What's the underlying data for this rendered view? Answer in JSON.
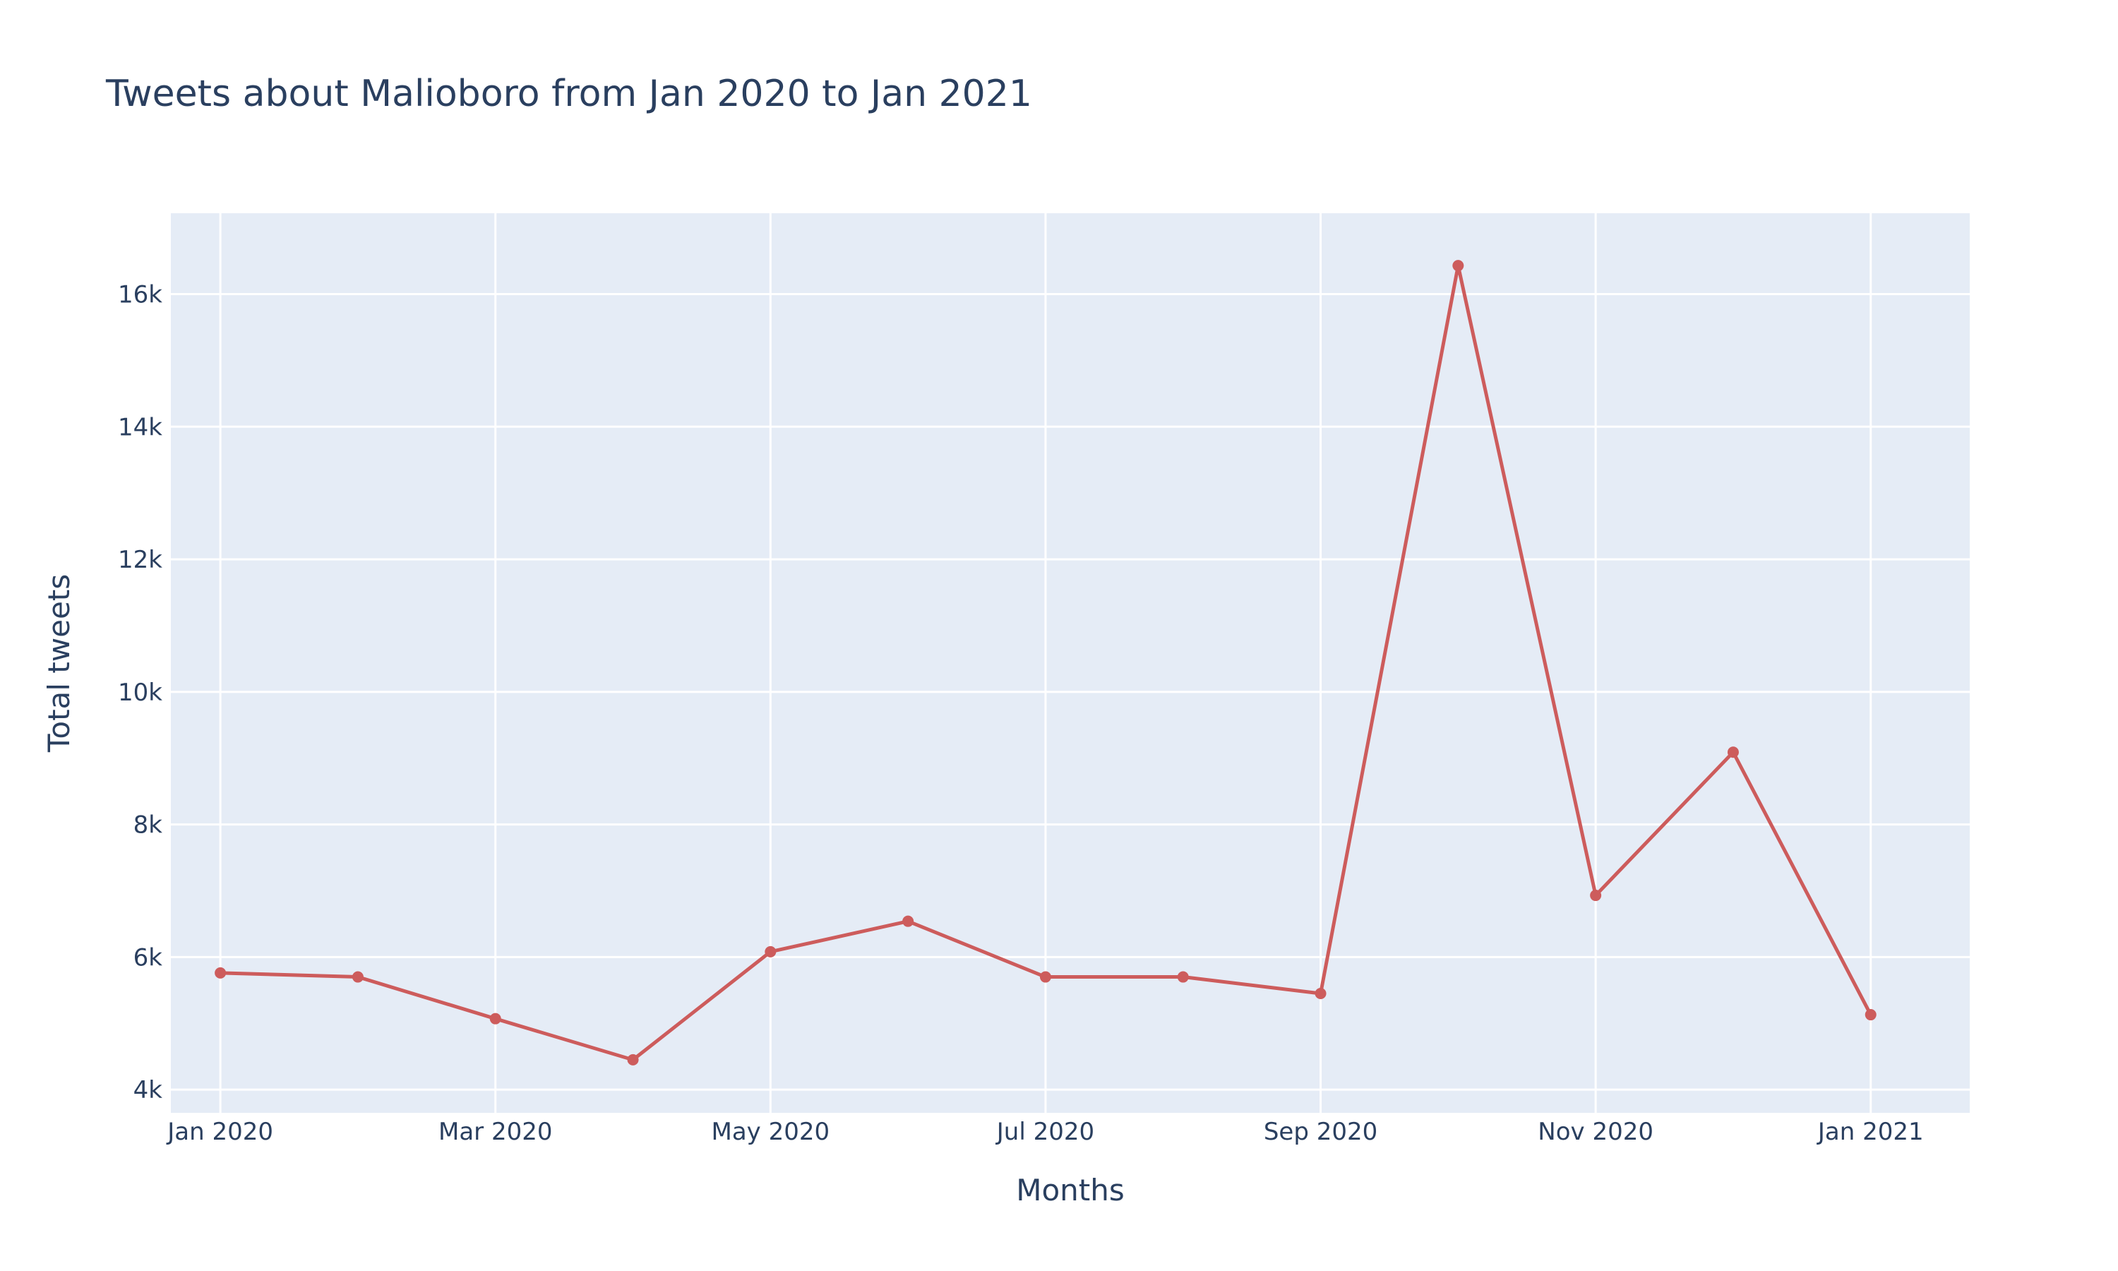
{
  "colors": {
    "plot_background": "#e5ecf6",
    "series": "#cd5c5c",
    "text": "#2a3f5f"
  },
  "chart_data": {
    "type": "line",
    "title": "Tweets about Malioboro from Jan 2020 to Jan 2021",
    "xlabel": "Months",
    "ylabel": "Total tweets",
    "grid": true,
    "x_ticks": [
      {
        "label": "Jan 2020",
        "month": 0
      },
      {
        "label": "Mar 2020",
        "month": 2
      },
      {
        "label": "May 2020",
        "month": 4
      },
      {
        "label": "Jul 2020",
        "month": 6
      },
      {
        "label": "Sep 2020",
        "month": 8
      },
      {
        "label": "Nov 2020",
        "month": 10
      },
      {
        "label": "Jan 2021",
        "month": 12
      }
    ],
    "y_ticks": [
      {
        "label": "4k",
        "value": 4000
      },
      {
        "label": "6k",
        "value": 6000
      },
      {
        "label": "8k",
        "value": 8000
      },
      {
        "label": "10k",
        "value": 10000
      },
      {
        "label": "12k",
        "value": 12000
      },
      {
        "label": "14k",
        "value": 14000
      },
      {
        "label": "16k",
        "value": 16000
      }
    ],
    "xlim": [
      -0.36,
      12.72
    ],
    "ylim": [
      3650,
      17220
    ],
    "series": [
      {
        "name": "Total tweets",
        "x": [
          "Jan 2020",
          "Feb 2020",
          "Mar 2020",
          "Apr 2020",
          "May 2020",
          "Jun 2020",
          "Jul 2020",
          "Aug 2020",
          "Sep 2020",
          "Oct 2020",
          "Nov 2020",
          "Dec 2020",
          "Jan 2021"
        ],
        "months": [
          0,
          1,
          2,
          3,
          4,
          5,
          6,
          7,
          8,
          9,
          10,
          11,
          12
        ],
        "values": [
          5760,
          5700,
          5070,
          4450,
          6080,
          6540,
          5700,
          5700,
          5450,
          16430,
          6930,
          9090,
          5130
        ]
      }
    ]
  }
}
